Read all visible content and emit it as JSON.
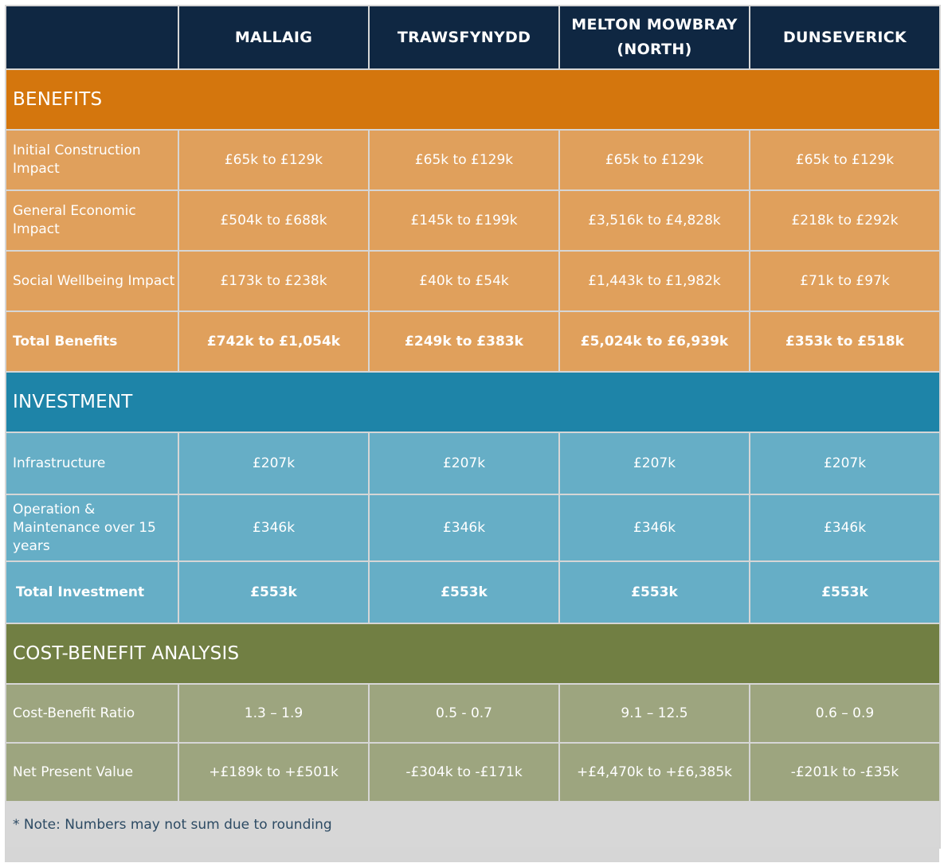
{
  "header": {
    "columns": [
      "MALLAIG",
      "TRAWSFYNYDD",
      "MELTON MOWBRAY\n(NORTH)",
      "DUNSEVERICK"
    ]
  },
  "benefits": {
    "title": "BENEFITS",
    "rows": [
      {
        "label": "Initial Construction Impact",
        "values": [
          "£65k to £129k",
          "£65k to £129k",
          "£65k to £129k",
          "£65k to £129k"
        ]
      },
      {
        "label": "General Economic Impact",
        "values": [
          "£504k to £688k",
          "£145k to £199k",
          "£3,516k to £4,828k",
          "£218k to £292k"
        ]
      },
      {
        "label": "Social Wellbeing Impact",
        "values": [
          "£173k to £238k",
          "£40k to £54k",
          "£1,443k to £1,982k",
          "£71k to £97k"
        ]
      },
      {
        "label": "Total Benefits",
        "values": [
          "£742k to £1,054k",
          "£249k to £383k",
          "£5,024k to £6,939k",
          "£353k to £518k"
        ]
      }
    ]
  },
  "investment": {
    "title": "INVESTMENT",
    "rows": [
      {
        "label": "Infrastructure",
        "values": [
          "£207k",
          "£207k",
          "£207k",
          "£207k"
        ]
      },
      {
        "label": "Operation & Maintenance over 15 years",
        "values": [
          "£346k",
          "£346k",
          "£346k",
          "£346k"
        ]
      },
      {
        "label": "Total Investment",
        "values": [
          "£553k",
          "£553k",
          "£553k",
          "£553k"
        ]
      }
    ]
  },
  "cba": {
    "title": "COST-BENEFIT ANALYSIS",
    "rows": [
      {
        "label": "Cost-Benefit Ratio",
        "values": [
          "1.3 – 1.9",
          "0.5 - 0.7",
          "9.1 – 12.5",
          "0.6 – 0.9"
        ]
      },
      {
        "label": "Net Present Value",
        "values": [
          "+£189k to +£501k",
          "-£304k to -£171k",
          "+£4,470k to +£6,385k",
          "-£201k to -£35k"
        ]
      }
    ]
  },
  "note": "* Note: Numbers may not sum due to rounding",
  "colors": {
    "header_bg": "#0f2742",
    "benefits_section": "#d4760d",
    "benefits_row": "#e0a05c",
    "investment_section": "#1e84a8",
    "investment_row": "#66aec6",
    "cba_section": "#717f43",
    "cba_row": "#9da57f",
    "note_bg": "#d7d7d7"
  }
}
